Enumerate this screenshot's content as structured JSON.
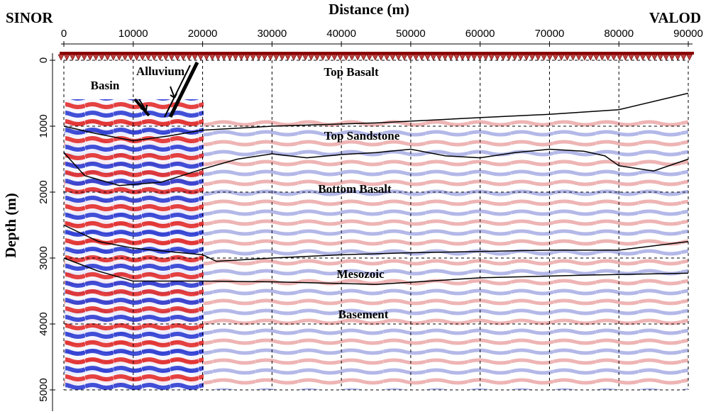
{
  "chart_data": {
    "type": "seismic",
    "title": "Distance (m)",
    "ylabel": "Depth (m)",
    "left_label": "SINOR",
    "right_label": "VALOD",
    "xlim": [
      0,
      90000
    ],
    "ylim": [
      0,
      5000
    ],
    "xticks": [
      0,
      10000,
      20000,
      30000,
      40000,
      50000,
      60000,
      70000,
      80000,
      90000
    ],
    "yticks": [
      0,
      1000,
      2000,
      3000,
      4000,
      5000
    ],
    "grid": true,
    "y_inverted": true,
    "annotations": [
      "Top Basalt",
      "Top Sandstone",
      "Bottom Basalt",
      "Mesozoic",
      "Basement",
      "Basin",
      "Alluvium"
    ],
    "series": [
      {
        "color": "#000000",
        "x": [
          0,
          5000,
          10000,
          15000,
          20000,
          30000,
          45000,
          60000,
          70000,
          80000,
          90000
        ],
        "values": [
          1000,
          1120,
          1220,
          1150,
          1060,
          1000,
          950,
          870,
          820,
          750,
          500
        ]
      },
      {
        "color": "#000000",
        "x": [
          0,
          3000,
          8000,
          14000,
          20000,
          25000,
          30000,
          35000,
          40000,
          45000,
          50000,
          55000,
          60000,
          65000,
          70000,
          75000,
          78000,
          80000,
          85000,
          90000
        ],
        "values": [
          1400,
          1750,
          1900,
          1850,
          1650,
          1500,
          1420,
          1480,
          1430,
          1400,
          1350,
          1450,
          1480,
          1400,
          1350,
          1380,
          1450,
          1600,
          1680,
          1500
        ]
      },
      {
        "color": "#000000",
        "x": [
          0,
          5000,
          10000,
          15000,
          20000,
          22000,
          30000,
          40000,
          50000,
          60000,
          70000,
          80000,
          90000
        ],
        "values": [
          2500,
          2750,
          2850,
          2900,
          2950,
          3050,
          3000,
          2950,
          2920,
          2900,
          2880,
          2880,
          2750
        ]
      },
      {
        "color": "#000000",
        "x": [
          0,
          5000,
          10000,
          20000,
          30000,
          45000,
          60000,
          75000,
          90000
        ],
        "values": [
          3000,
          3200,
          3350,
          3350,
          3360,
          3400,
          3300,
          3260,
          3230
        ]
      }
    ]
  }
}
